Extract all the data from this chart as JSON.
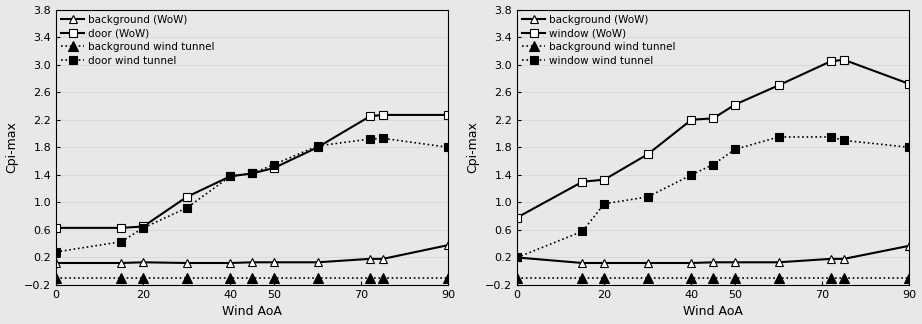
{
  "left": {
    "xlabel": "Wind AoA",
    "ylabel": "Cpi-max",
    "xlim": [
      0,
      90
    ],
    "ylim": [
      -0.2,
      3.8
    ],
    "yticks": [
      -0.2,
      0.2,
      0.6,
      1.0,
      1.4,
      1.8,
      2.2,
      2.6,
      3.0,
      3.4,
      3.8
    ],
    "xticks": [
      0,
      20,
      40,
      50,
      70,
      90
    ],
    "series": [
      {
        "label": "background (WoW)",
        "x": [
          0,
          15,
          20,
          30,
          40,
          45,
          50,
          60,
          72,
          75,
          90
        ],
        "y": [
          0.12,
          0.12,
          0.13,
          0.12,
          0.12,
          0.13,
          0.13,
          0.13,
          0.18,
          0.18,
          0.38
        ],
        "style": "solid",
        "marker": "^",
        "markersize": 6,
        "markerfacecolor": "white",
        "color": "black",
        "linewidth": 1.5
      },
      {
        "label": "door (WoW)",
        "x": [
          0,
          15,
          20,
          30,
          40,
          45,
          50,
          60,
          72,
          75,
          90
        ],
        "y": [
          0.63,
          0.63,
          0.65,
          1.08,
          1.38,
          1.42,
          1.5,
          1.8,
          2.25,
          2.27,
          2.27
        ],
        "style": "solid",
        "marker": "s",
        "markersize": 6,
        "markerfacecolor": "white",
        "color": "black",
        "linewidth": 1.5
      },
      {
        "label": "background wind tunnel",
        "x": [
          0,
          15,
          20,
          30,
          40,
          45,
          50,
          60,
          72,
          75,
          90
        ],
        "y": [
          -0.1,
          -0.1,
          -0.1,
          -0.1,
          -0.1,
          -0.1,
          -0.1,
          -0.1,
          -0.1,
          -0.1,
          -0.1
        ],
        "style": "dotted",
        "marker": "^",
        "markersize": 7,
        "markerfacecolor": "black",
        "color": "black",
        "linewidth": 1.2
      },
      {
        "label": "door wind tunnel",
        "x": [
          0,
          15,
          20,
          30,
          40,
          45,
          50,
          60,
          72,
          75,
          90
        ],
        "y": [
          0.28,
          0.43,
          0.63,
          0.92,
          1.38,
          1.42,
          1.55,
          1.82,
          1.92,
          1.93,
          1.8
        ],
        "style": "dotted",
        "marker": "s",
        "markersize": 6,
        "markerfacecolor": "black",
        "color": "black",
        "linewidth": 1.2
      }
    ]
  },
  "right": {
    "xlabel": "Wind AoA",
    "ylabel": "Cpi-max",
    "xlim": [
      0,
      90
    ],
    "ylim": [
      -0.2,
      3.8
    ],
    "yticks": [
      -0.2,
      0.2,
      0.6,
      1.0,
      1.4,
      1.8,
      2.2,
      2.6,
      3.0,
      3.4,
      3.8
    ],
    "xticks": [
      0,
      20,
      40,
      50,
      70,
      90
    ],
    "series": [
      {
        "label": "background (WoW)",
        "x": [
          0,
          15,
          20,
          30,
          40,
          45,
          50,
          60,
          72,
          75,
          90
        ],
        "y": [
          0.2,
          0.12,
          0.12,
          0.12,
          0.12,
          0.13,
          0.13,
          0.13,
          0.18,
          0.18,
          0.37
        ],
        "style": "solid",
        "marker": "^",
        "markersize": 6,
        "markerfacecolor": "white",
        "color": "black",
        "linewidth": 1.5
      },
      {
        "label": "window (WoW)",
        "x": [
          0,
          15,
          20,
          30,
          40,
          45,
          50,
          60,
          72,
          75,
          90
        ],
        "y": [
          0.78,
          1.3,
          1.33,
          1.7,
          2.2,
          2.22,
          2.42,
          2.7,
          3.05,
          3.07,
          2.72
        ],
        "style": "solid",
        "marker": "s",
        "markersize": 6,
        "markerfacecolor": "white",
        "color": "black",
        "linewidth": 1.5
      },
      {
        "label": "background wind tunnel",
        "x": [
          0,
          15,
          20,
          30,
          40,
          45,
          50,
          60,
          72,
          75,
          90
        ],
        "y": [
          -0.1,
          -0.1,
          -0.1,
          -0.1,
          -0.1,
          -0.1,
          -0.1,
          -0.1,
          -0.1,
          -0.1,
          -0.1
        ],
        "style": "dotted",
        "marker": "^",
        "markersize": 7,
        "markerfacecolor": "black",
        "color": "black",
        "linewidth": 1.2
      },
      {
        "label": "window wind tunnel",
        "x": [
          0,
          15,
          20,
          30,
          40,
          45,
          50,
          60,
          72,
          75,
          90
        ],
        "y": [
          0.2,
          0.58,
          0.98,
          1.08,
          1.4,
          1.55,
          1.77,
          1.95,
          1.95,
          1.9,
          1.8
        ],
        "style": "dotted",
        "marker": "s",
        "markersize": 6,
        "markerfacecolor": "black",
        "color": "black",
        "linewidth": 1.2
      }
    ]
  },
  "bg_color": "#e8e8e8",
  "fig_width": 9.22,
  "fig_height": 3.24,
  "dpi": 100
}
